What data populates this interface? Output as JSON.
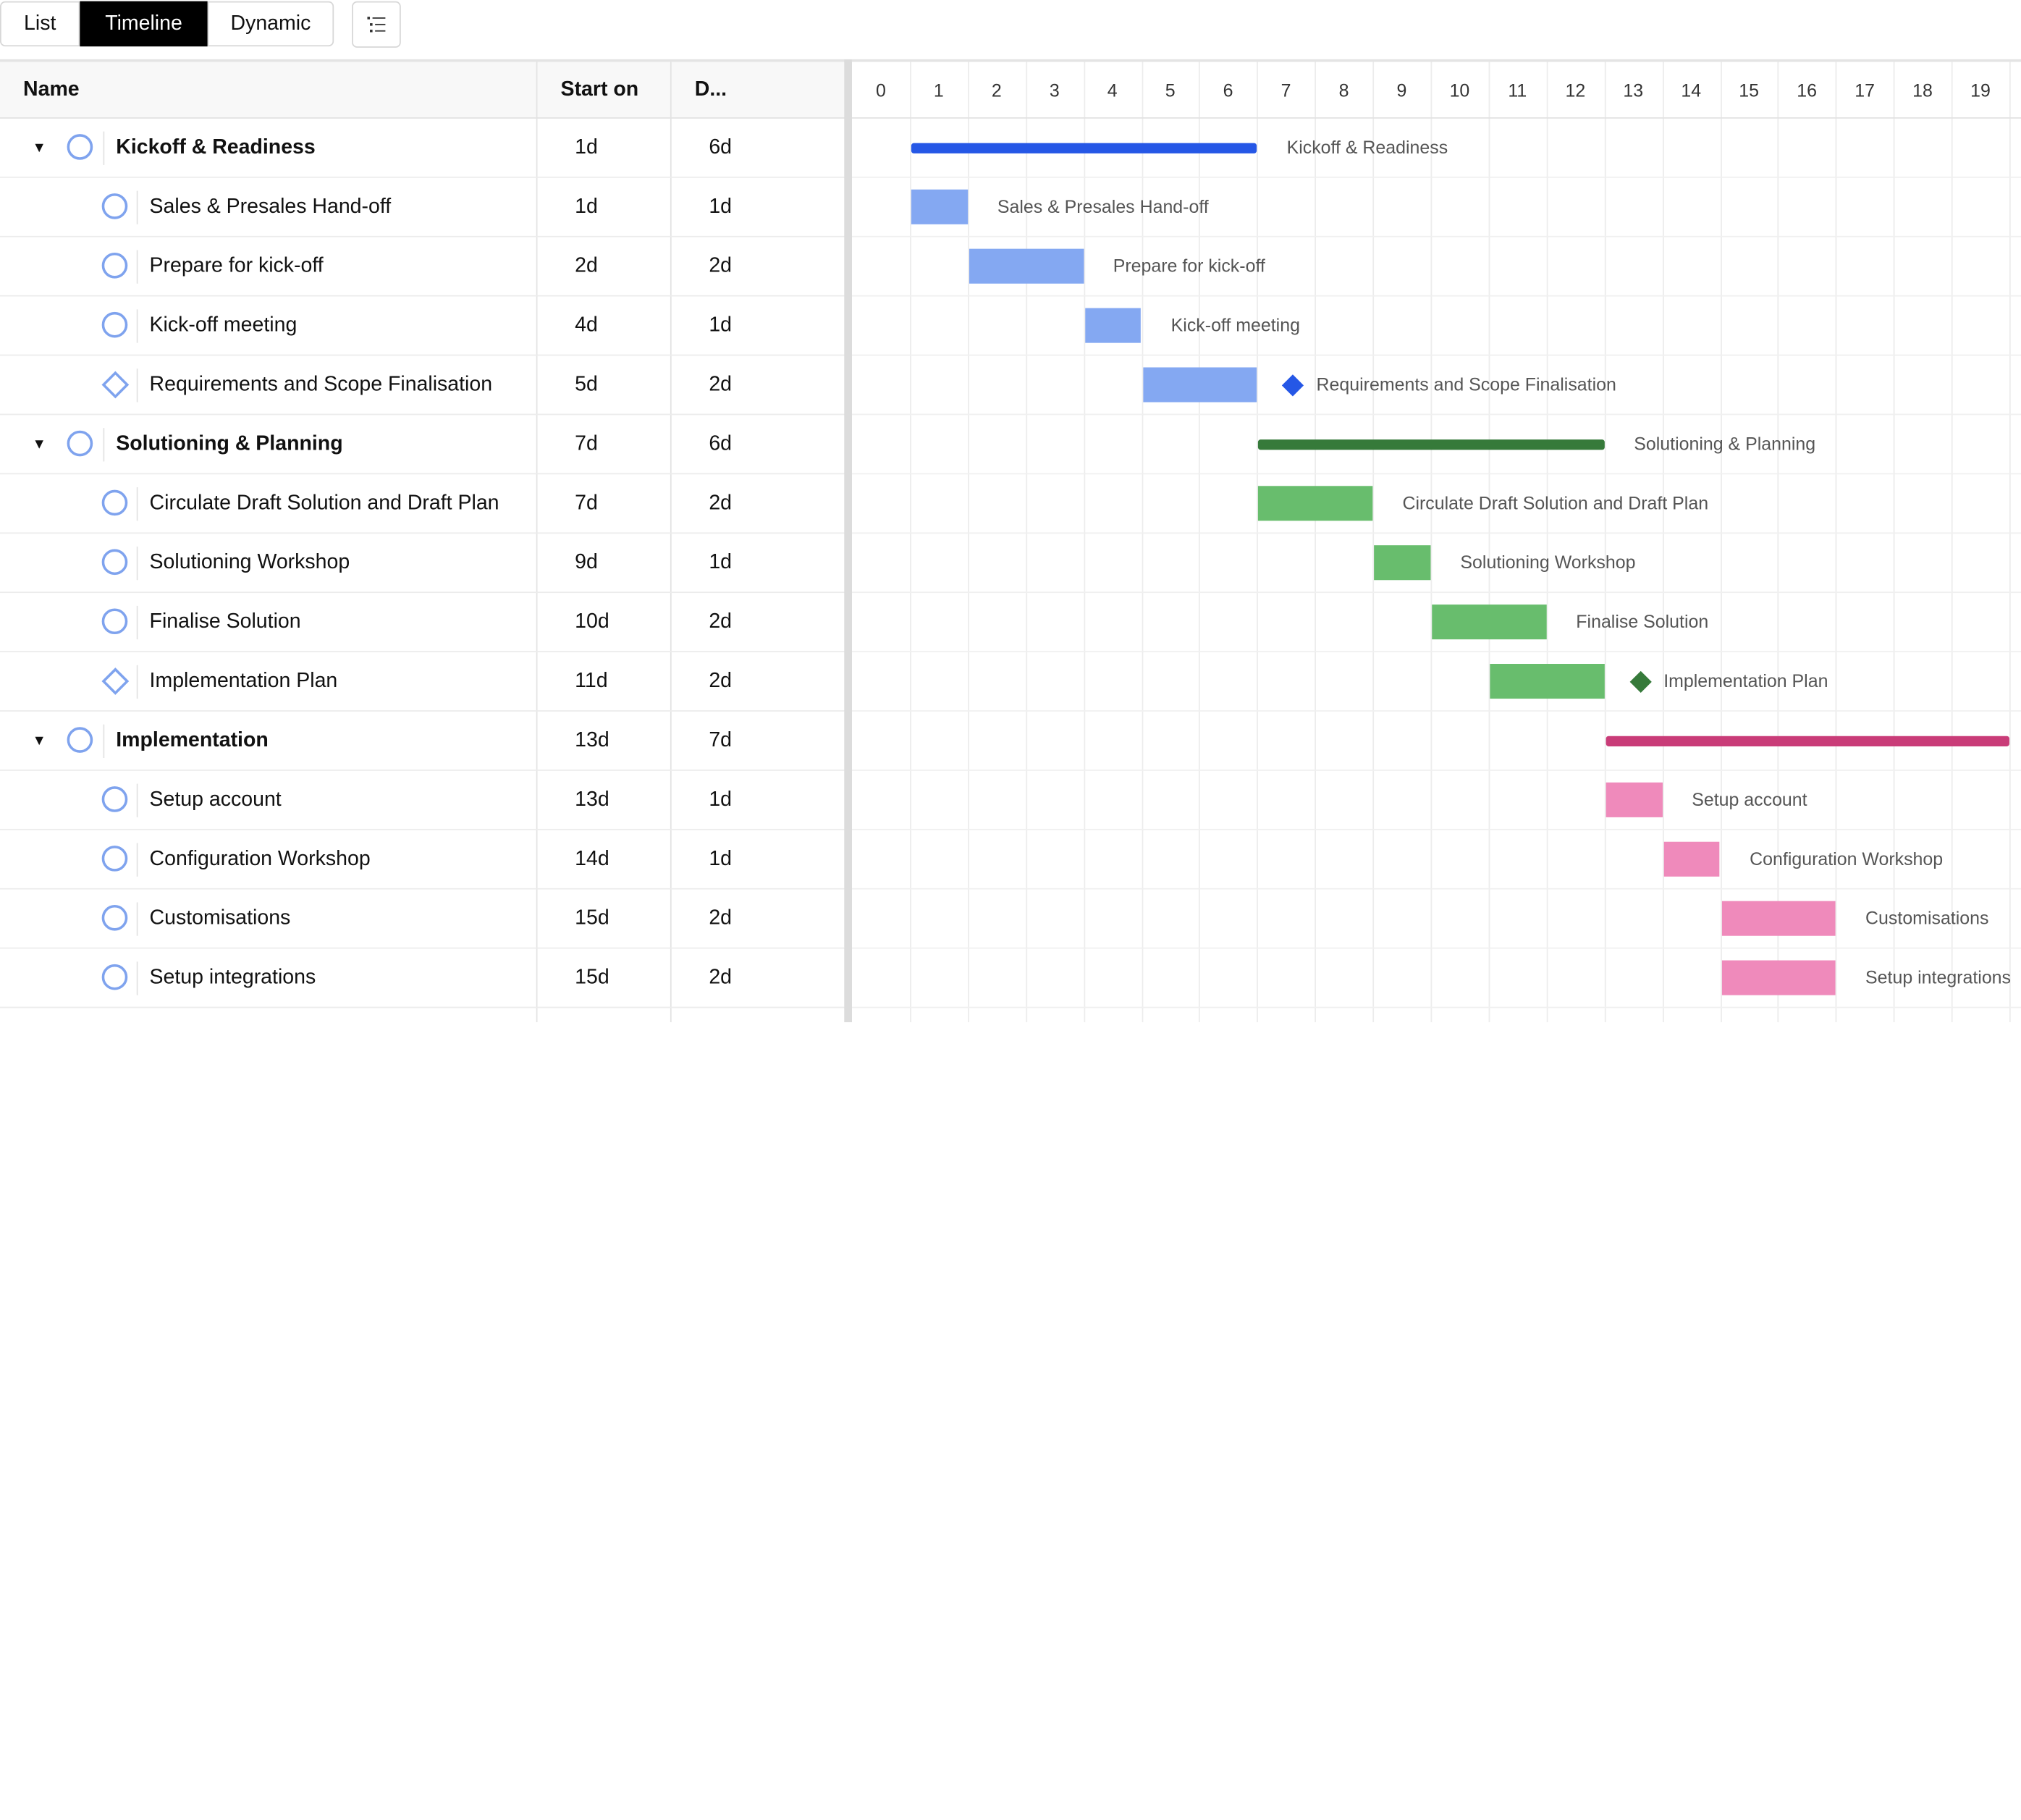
{
  "tabs": [
    {
      "label": "List",
      "active": false
    },
    {
      "label": "Timeline",
      "active": true
    },
    {
      "label": "Dynamic",
      "active": false
    }
  ],
  "toolbar_icon": "list-outline-icon",
  "columns": {
    "name": "Name",
    "start": "Start on",
    "duration": "D..."
  },
  "timeline_ticks": [
    "0",
    "1",
    "2",
    "3",
    "4",
    "5",
    "6",
    "7",
    "8",
    "9",
    "10",
    "11",
    "12",
    "13",
    "14",
    "15",
    "16",
    "17",
    "18",
    "19"
  ],
  "colors": {
    "status_outline": "#7fa3ee",
    "kickoff_summary": "#2557e6",
    "kickoff_task": "#84a8f2",
    "planning_summary": "#367a3a",
    "planning_task": "#68bd6d",
    "impl_summary": "#c93c78",
    "impl_task": "#ef8abb"
  },
  "rows": [
    {
      "name": "Kickoff & Readiness",
      "start": "1d",
      "duration": "6d",
      "level": 0,
      "shape": "circle",
      "group": "kickoff",
      "kind": "summary",
      "s": 1,
      "d": 6,
      "milestone": false
    },
    {
      "name": "Sales & Presales Hand-off",
      "start": "1d",
      "duration": "1d",
      "level": 1,
      "shape": "circle",
      "group": "kickoff",
      "kind": "task",
      "s": 1,
      "d": 1,
      "milestone": false
    },
    {
      "name": "Prepare for kick-off",
      "start": "2d",
      "duration": "2d",
      "level": 1,
      "shape": "circle",
      "group": "kickoff",
      "kind": "task",
      "s": 2,
      "d": 2,
      "milestone": false
    },
    {
      "name": "Kick-off meeting",
      "start": "4d",
      "duration": "1d",
      "level": 1,
      "shape": "circle",
      "group": "kickoff",
      "kind": "task",
      "s": 4,
      "d": 1,
      "milestone": false
    },
    {
      "name": "Requirements and Scope Finalisation",
      "start": "5d",
      "duration": "2d",
      "level": 1,
      "shape": "diamond",
      "group": "kickoff",
      "kind": "task",
      "s": 5,
      "d": 2,
      "milestone": true
    },
    {
      "name": "Solutioning & Planning",
      "start": "7d",
      "duration": "6d",
      "level": 0,
      "shape": "circle",
      "group": "planning",
      "kind": "summary",
      "s": 7,
      "d": 6,
      "milestone": false
    },
    {
      "name": "Circulate Draft Solution and Draft Plan",
      "start": "7d",
      "duration": "2d",
      "level": 1,
      "shape": "circle",
      "group": "planning",
      "kind": "task",
      "s": 7,
      "d": 2,
      "milestone": false
    },
    {
      "name": "Solutioning Workshop",
      "start": "9d",
      "duration": "1d",
      "level": 1,
      "shape": "circle",
      "group": "planning",
      "kind": "task",
      "s": 9,
      "d": 1,
      "milestone": false
    },
    {
      "name": "Finalise Solution",
      "start": "10d",
      "duration": "2d",
      "level": 1,
      "shape": "circle",
      "group": "planning",
      "kind": "task",
      "s": 10,
      "d": 2,
      "milestone": false
    },
    {
      "name": "Implementation Plan",
      "start": "11d",
      "duration": "2d",
      "level": 1,
      "shape": "diamond",
      "group": "planning",
      "kind": "task",
      "s": 11,
      "d": 2,
      "milestone": true
    },
    {
      "name": "Implementation",
      "start": "13d",
      "duration": "7d",
      "level": 0,
      "shape": "circle",
      "group": "impl",
      "kind": "summary",
      "s": 13,
      "d": 7,
      "milestone": false
    },
    {
      "name": "Setup account",
      "start": "13d",
      "duration": "1d",
      "level": 1,
      "shape": "circle",
      "group": "impl",
      "kind": "task",
      "s": 13,
      "d": 1,
      "milestone": false
    },
    {
      "name": "Configuration Workshop",
      "start": "14d",
      "duration": "1d",
      "level": 1,
      "shape": "circle",
      "group": "impl",
      "kind": "task",
      "s": 14,
      "d": 1,
      "milestone": false
    },
    {
      "name": "Customisations",
      "start": "15d",
      "duration": "2d",
      "level": 1,
      "shape": "circle",
      "group": "impl",
      "kind": "task",
      "s": 15,
      "d": 2,
      "milestone": false
    },
    {
      "name": "Setup integrations",
      "start": "15d",
      "duration": "2d",
      "level": 1,
      "shape": "circle",
      "group": "impl",
      "kind": "task",
      "s": 15,
      "d": 2,
      "milestone": false
    }
  ]
}
